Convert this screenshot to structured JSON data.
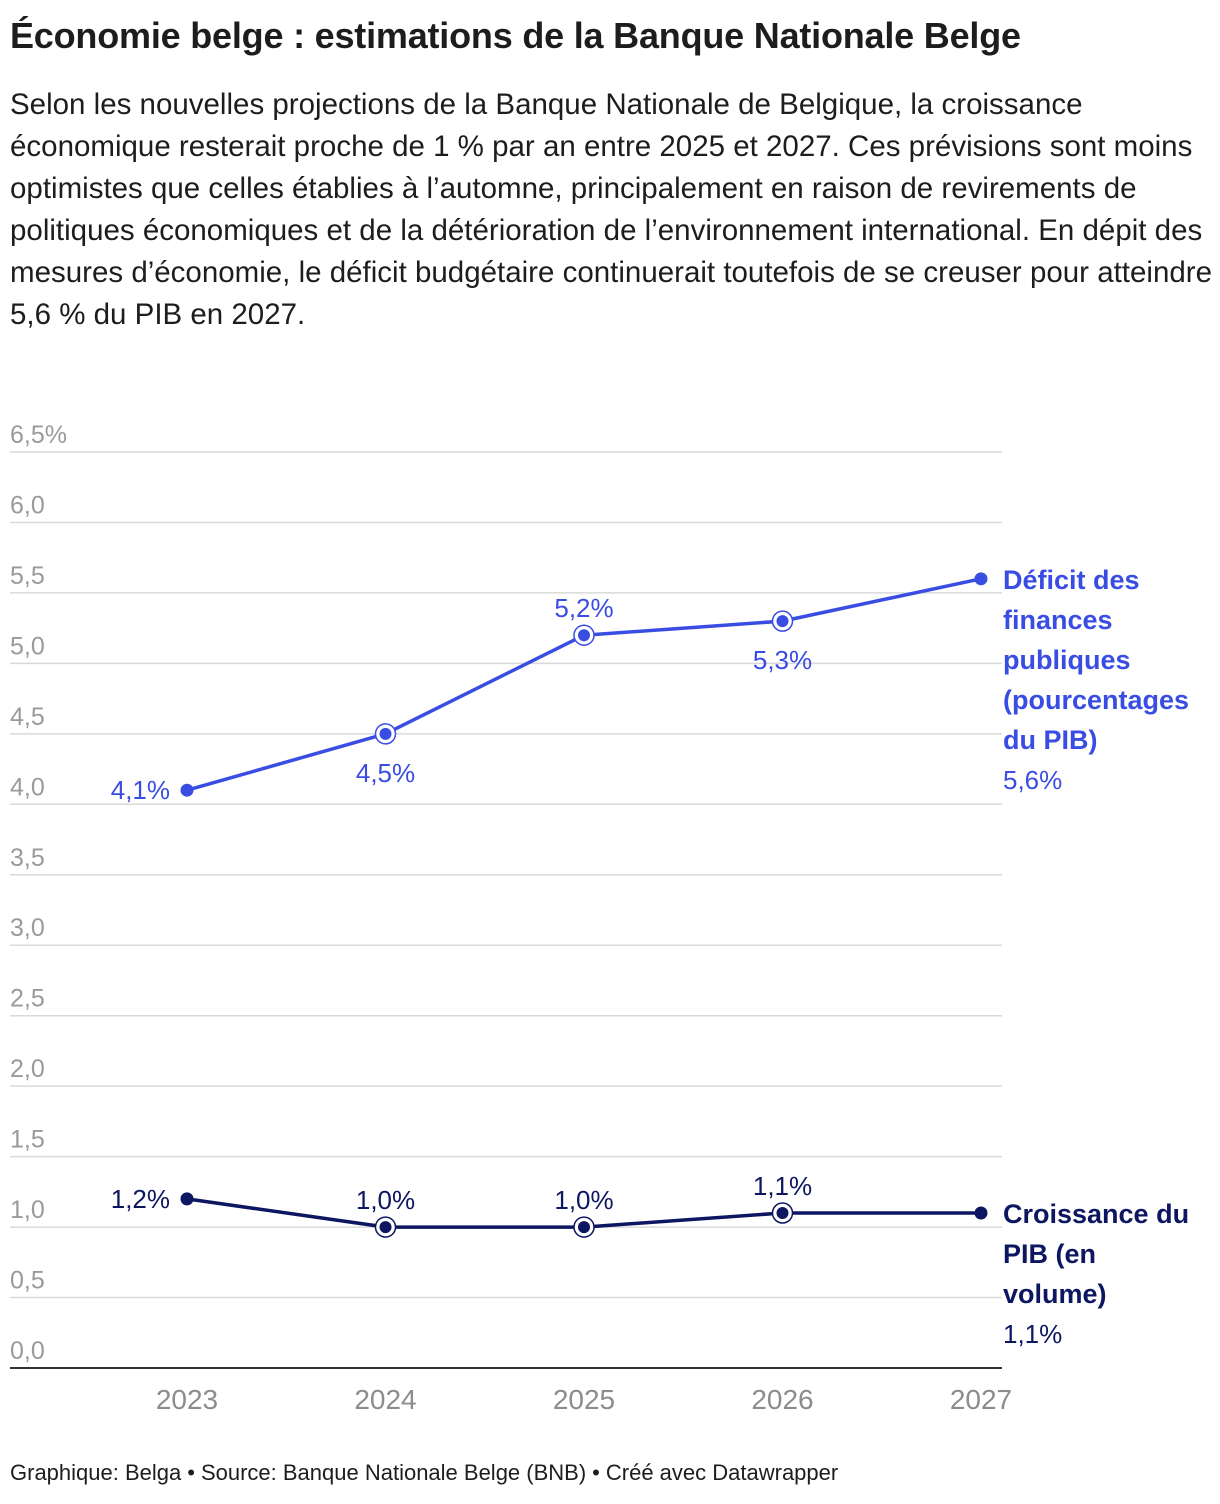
{
  "title": "Économie belge : estimations de la Banque Nationale Belge",
  "description": "Selon les nouvelles projections de la Banque Nationale de Belgique, la croissance économique resterait proche de 1 % par an entre 2025 et 2027. Ces prévisions sont moins optimistes que celles établies à l’automne, principalement en raison de revirements de politiques économiques et de la détérioration de l’environnement international. En dépit des mesures d’économie, le déficit budgétaire continuerait toutefois de se creuser pour atteindre 5,6 % du PIB en 2027.",
  "footer": {
    "graphic": "Graphique: Belga",
    "source": "Source: Banque Nationale Belge (BNB)",
    "made_with": "Créé avec Datawrapper",
    "separator": "•"
  },
  "colors": {
    "deficit": "#3a4de3",
    "growth": "#0d1660",
    "grid": "#d9d9d9",
    "axis": "#333333",
    "tick": "#9a9a9a"
  },
  "chart_data": {
    "type": "line",
    "categories": [
      "2023",
      "2024",
      "2025",
      "2026",
      "2027"
    ],
    "y_ticks": [
      "0,0",
      "0,5",
      "1,0",
      "1,5",
      "2,0",
      "2,5",
      "3,0",
      "3,5",
      "4,0",
      "4,5",
      "5,0",
      "5,5",
      "6,0",
      "6,5%"
    ],
    "ylim": [
      0,
      6.5
    ],
    "grid": true,
    "series": [
      {
        "name": "Déficit des finances publiques (pourcentages du PIB)",
        "label_lines": [
          "Déficit des",
          "finances",
          "publiques",
          "(pourcentages",
          "du PIB)"
        ],
        "values": [
          4.1,
          4.5,
          5.2,
          5.3,
          5.6
        ],
        "data_labels": [
          "4,1%",
          "4,5%",
          "5,2%",
          "5,3%",
          "5,6%"
        ],
        "color_key": "deficit"
      },
      {
        "name": "Croissance du PIB (en volume)",
        "label_lines": [
          "Croissance du",
          "PIB (en",
          "volume)"
        ],
        "values": [
          1.2,
          1.0,
          1.0,
          1.1,
          1.1
        ],
        "data_labels": [
          "1,2%",
          "1,0%",
          "1,0%",
          "1,1%",
          "1,1%"
        ],
        "color_key": "growth"
      }
    ]
  }
}
